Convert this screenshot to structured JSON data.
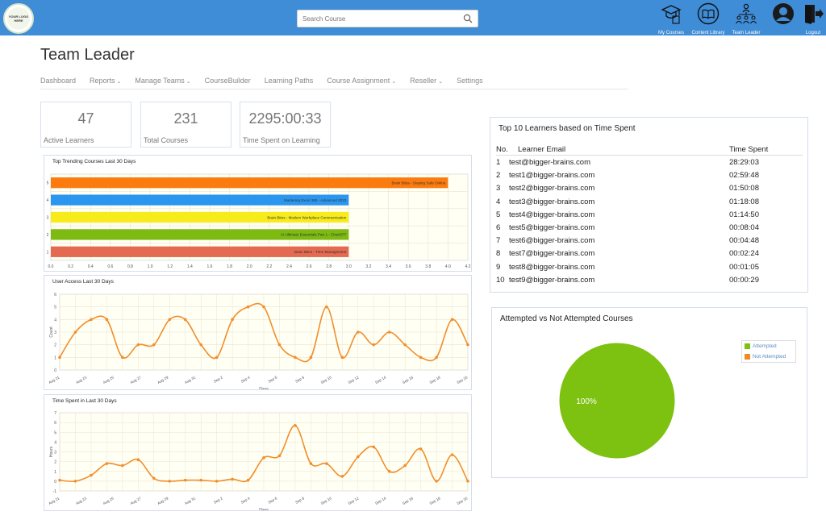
{
  "header": {
    "logo_text": "YOUR LOGO HERE",
    "search_placeholder": "Search Course",
    "nav": [
      {
        "label": "My Courses",
        "icon": "graduation-cap-icon"
      },
      {
        "label": "Content Library",
        "icon": "open-book-icon"
      },
      {
        "label": "Team Leader",
        "icon": "team-hierarchy-icon"
      },
      {
        "label": "",
        "icon": "user-avatar-icon"
      },
      {
        "label": "Logout",
        "icon": "logout-door-icon"
      }
    ],
    "colors": {
      "bar": "#3f8cd7"
    }
  },
  "page": {
    "title": "Team Leader",
    "tabs": [
      {
        "label": "Dashboard",
        "dropdown": false
      },
      {
        "label": "Reports",
        "dropdown": true
      },
      {
        "label": "Manage Teams",
        "dropdown": true
      },
      {
        "label": "CourseBuilder",
        "dropdown": false
      },
      {
        "label": "Learning Paths",
        "dropdown": false
      },
      {
        "label": "Course Assignment",
        "dropdown": true
      },
      {
        "label": "Reseller",
        "dropdown": true
      },
      {
        "label": "Settings",
        "dropdown": false
      }
    ]
  },
  "stats": [
    {
      "value": "47",
      "label": "Active Learners"
    },
    {
      "value": "231",
      "label": "Total Courses"
    },
    {
      "value": "2295:00:33",
      "label": "Time Spent on Learning"
    }
  ],
  "learners": {
    "title": "Top 10 Learners based on Time Spent",
    "columns": [
      "No.",
      "Learner Email",
      "Time Spent"
    ],
    "rows": [
      [
        "1",
        "test@bigger-brains.com",
        "28:29:03"
      ],
      [
        "2",
        "test1@bigger-brains.com",
        "02:59:48"
      ],
      [
        "3",
        "test2@bigger-brains.com",
        "01:50:08"
      ],
      [
        "4",
        "test3@bigger-brains.com",
        "01:18:08"
      ],
      [
        "5",
        "test4@bigger-brains.com",
        "01:14:50"
      ],
      [
        "6",
        "test5@bigger-brains.com",
        "00:08:04"
      ],
      [
        "7",
        "test6@bigger-brains.com",
        "00:04:48"
      ],
      [
        "8",
        "test7@bigger-brains.com",
        "00:02:24"
      ],
      [
        "9",
        "test8@bigger-brains.com",
        "00:01:05"
      ],
      [
        "10",
        "test9@bigger-brains.com",
        "00:00:29"
      ]
    ]
  },
  "chart_data": [
    {
      "type": "bar",
      "orientation": "horizontal",
      "title": "Top Trending Courses Last 30 Days",
      "categories": [
        "1",
        "2",
        "3",
        "4",
        "5"
      ],
      "bar_labels": [
        "Brain Bites - Time Management",
        "AI Ultimate Essentials Part 1 - ChatGPT",
        "Brain Bites - Modern Workplace Communication",
        "Mastering Excel 365 - Advanced 2023",
        "Brain Bites - Staying Safe Online"
      ],
      "values": [
        3,
        3,
        3,
        3,
        4
      ],
      "colors": [
        "#e46a51",
        "#7dba12",
        "#f7eb1c",
        "#2b96f0",
        "#fb7b0f"
      ],
      "xlim": [
        0,
        4.2
      ],
      "xticks": [
        "0.0",
        "0.2",
        "0.4",
        "0.6",
        "0.8",
        "1.0",
        "1.2",
        "1.4",
        "1.6",
        "1.8",
        "2.0",
        "2.2",
        "2.4",
        "2.6",
        "2.8",
        "3.0",
        "3.2",
        "3.4",
        "3.6",
        "3.8",
        "4.0",
        "4.2"
      ],
      "grid": true
    },
    {
      "type": "line",
      "title": "User Access Last 30 Days",
      "xlabel": "Days",
      "ylabel": "Count",
      "ylim": [
        0,
        6
      ],
      "yticks": [
        "0",
        "1",
        "2",
        "3",
        "4",
        "5",
        "6"
      ],
      "xticks": [
        "Aug 21",
        "Aug 23",
        "Aug 25",
        "Aug 27",
        "Aug 29",
        "Aug 31",
        "Sep 2",
        "Sep 4",
        "Sep 6",
        "Sep 8",
        "Sep 10",
        "Sep 12",
        "Sep 14",
        "Sep 16",
        "Sep 18",
        "Sep 20"
      ],
      "series": [
        {
          "values": [
            1,
            3,
            4,
            4,
            1,
            2,
            2,
            4,
            4,
            2,
            1,
            4,
            5,
            5,
            2,
            1,
            1,
            5,
            1,
            3,
            2,
            3,
            2,
            1,
            1,
            4,
            2
          ]
        }
      ],
      "color": "#f28e2b",
      "grid": true
    },
    {
      "type": "line",
      "title": "Time Spent in Last 30 Days",
      "xlabel": "Days",
      "ylabel": "Hours",
      "ylim": [
        -1,
        7
      ],
      "yticks": [
        "-1",
        "0",
        "1",
        "2",
        "3",
        "4",
        "5",
        "6",
        "7"
      ],
      "xticks": [
        "Aug 21",
        "Aug 23",
        "Aug 25",
        "Aug 27",
        "Aug 29",
        "Aug 31",
        "Sep 2",
        "Sep 4",
        "Sep 6",
        "Sep 8",
        "Sep 10",
        "Sep 12",
        "Sep 14",
        "Sep 16",
        "Sep 18",
        "Sep 20"
      ],
      "series": [
        {
          "values": [
            0.1,
            0,
            0.6,
            1.8,
            1.6,
            2.2,
            0.3,
            0,
            0.1,
            0.1,
            0,
            0.2,
            0.1,
            2.4,
            2.6,
            5.7,
            1.8,
            1.8,
            0.5,
            2.5,
            3.5,
            1,
            1.6,
            3.3,
            0,
            2.7,
            0
          ]
        }
      ],
      "color": "#f28e2b",
      "grid": true
    },
    {
      "type": "pie",
      "title": "Attempted vs Not Attempted Courses",
      "labels": [
        "Attempted",
        "Not Attempted"
      ],
      "values": [
        100,
        0
      ],
      "slice_label": "100%",
      "colors": [
        "#7dc111",
        "#f08a24"
      ],
      "legend": "top-right"
    }
  ]
}
